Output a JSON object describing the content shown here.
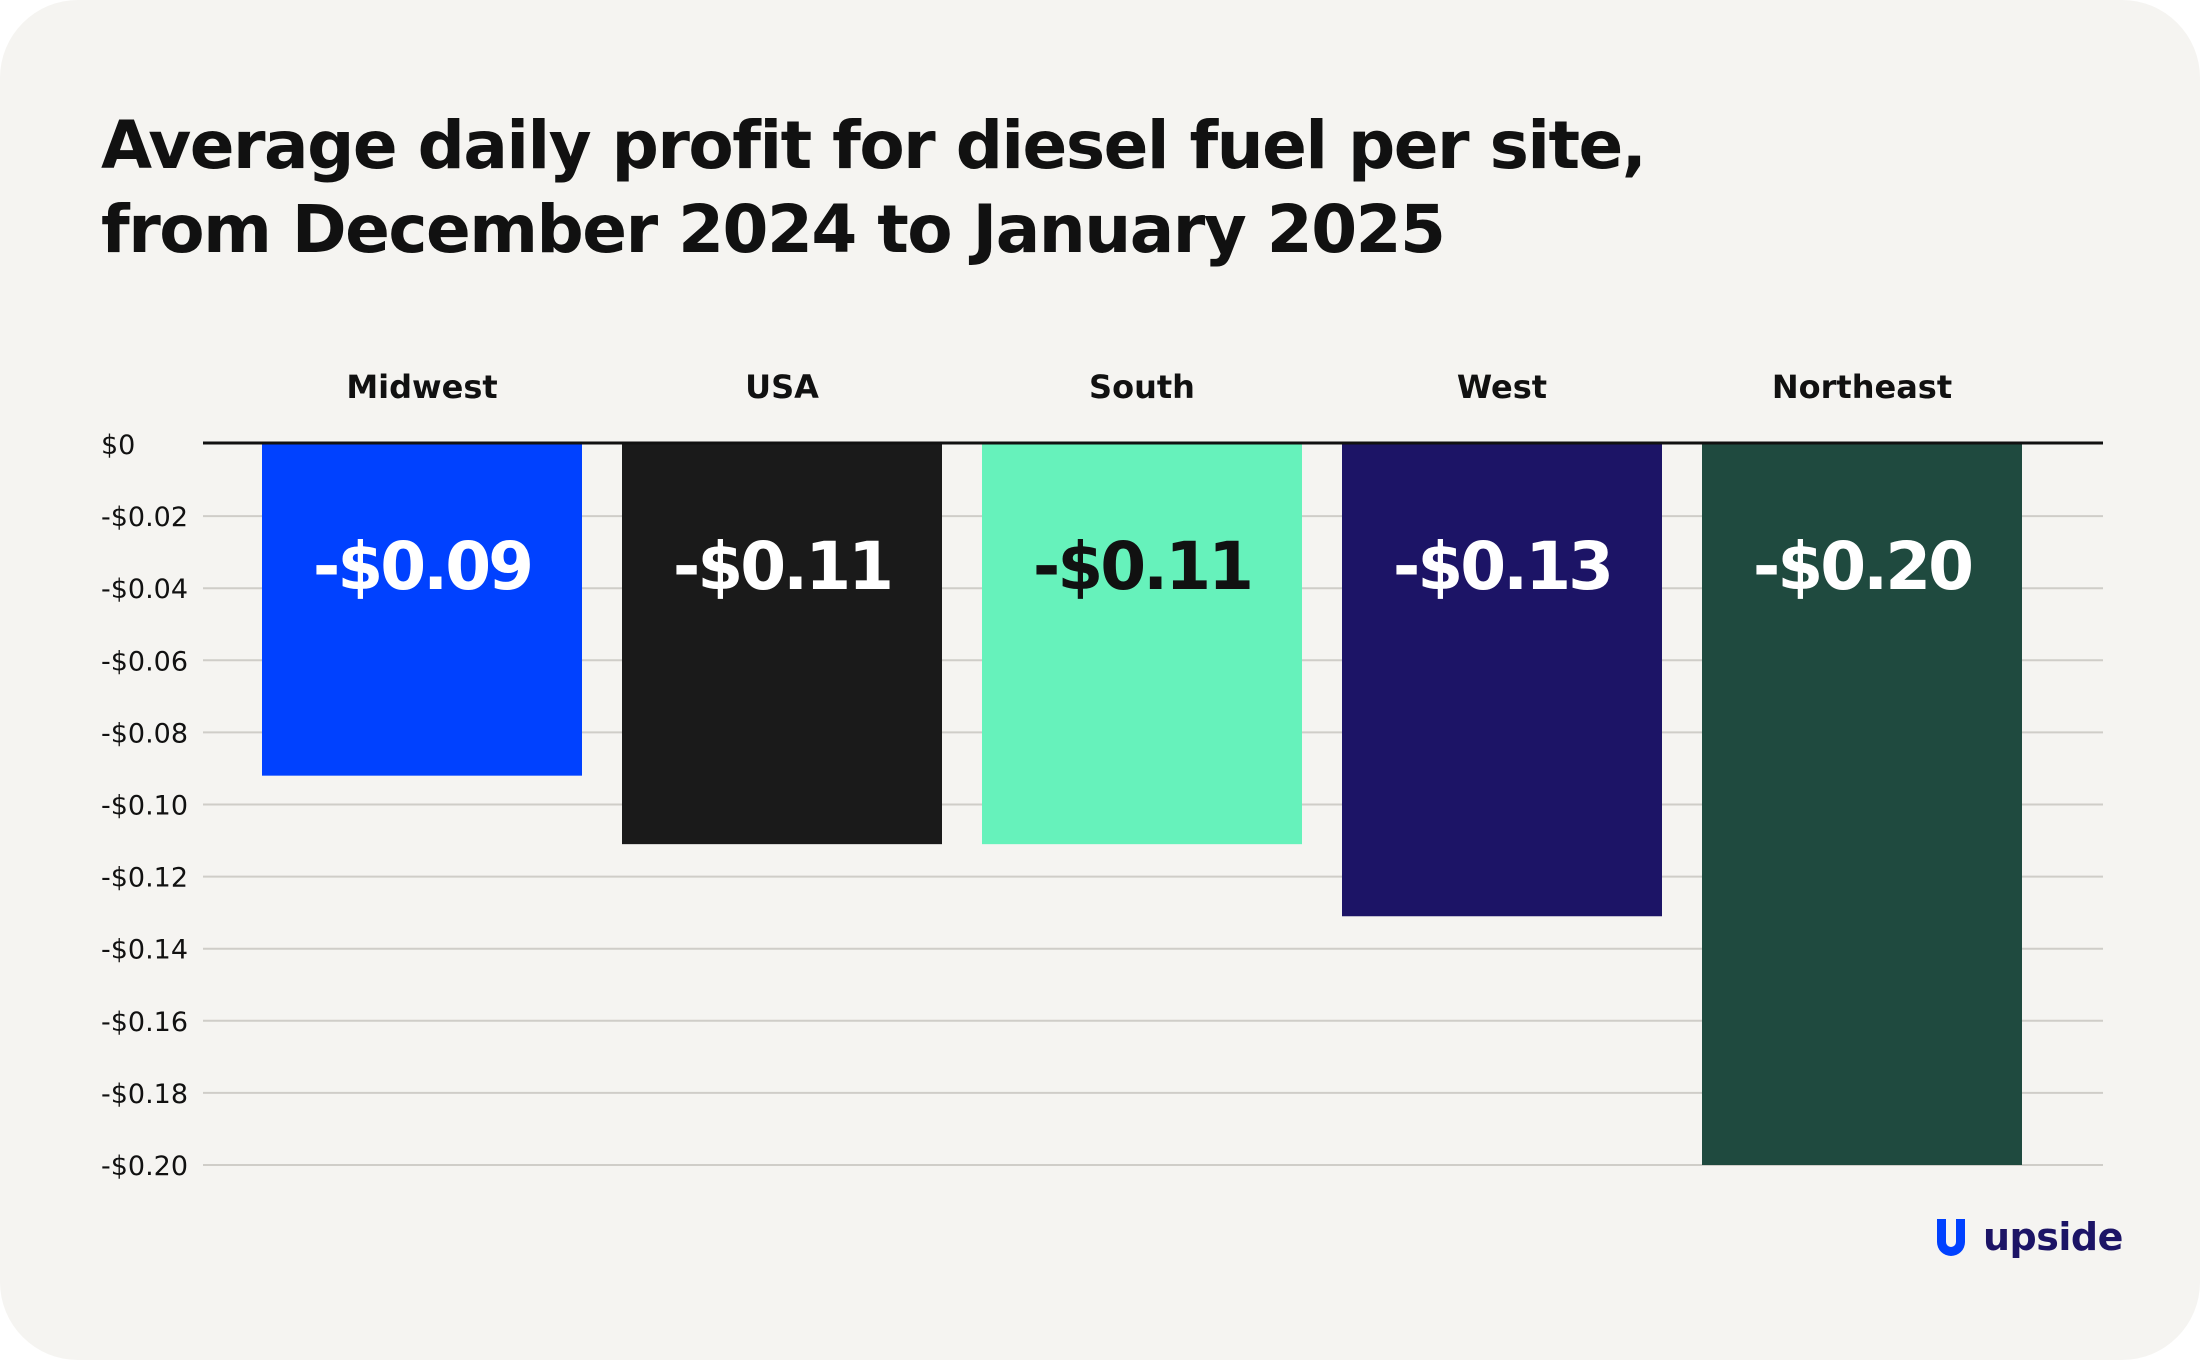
{
  "title_lines": [
    "Average daily profit for diesel fuel per site,",
    "from December 2024 to January 2025"
  ],
  "chart_data": {
    "type": "bar",
    "orientation": "vertical, hanging down from zero",
    "categories": [
      "Midwest",
      "USA",
      "South",
      "West",
      "Northeast"
    ],
    "values": [
      -0.092,
      -0.111,
      -0.111,
      -0.131,
      -0.2
    ],
    "data_labels": [
      "-$0.09",
      "-$0.11",
      "-$0.11",
      "-$0.13",
      "-$0.20"
    ],
    "bar_colors": [
      "#0041ff",
      "#1a1a1a",
      "#66f2bb",
      "#1c1466",
      "#1f4a3f"
    ],
    "label_colors": [
      "#ffffff",
      "#ffffff",
      "#111111",
      "#ffffff",
      "#ffffff"
    ],
    "yticks": [
      0,
      -0.02,
      -0.04,
      -0.06,
      -0.08,
      -0.1,
      -0.12,
      -0.14,
      -0.16,
      -0.18,
      -0.2
    ],
    "ytick_labels": [
      "$0",
      "-$0.02",
      "-$0.04",
      "-$0.06",
      "-$0.08",
      "-$0.10",
      "-$0.12",
      "-$0.14",
      "-$0.16",
      "-$0.18",
      "-$0.20"
    ],
    "ylim": [
      -0.2,
      0
    ],
    "category_labels_position": "top",
    "grid": true,
    "legend": false
  },
  "brand": {
    "name": "upside",
    "icon": "upside-logo-icon",
    "color": "#1c1466"
  },
  "colors": {
    "background": "#f5f4f1",
    "gridline": "#cfcdc8",
    "zero_line": "#111111",
    "text": "#111111"
  }
}
